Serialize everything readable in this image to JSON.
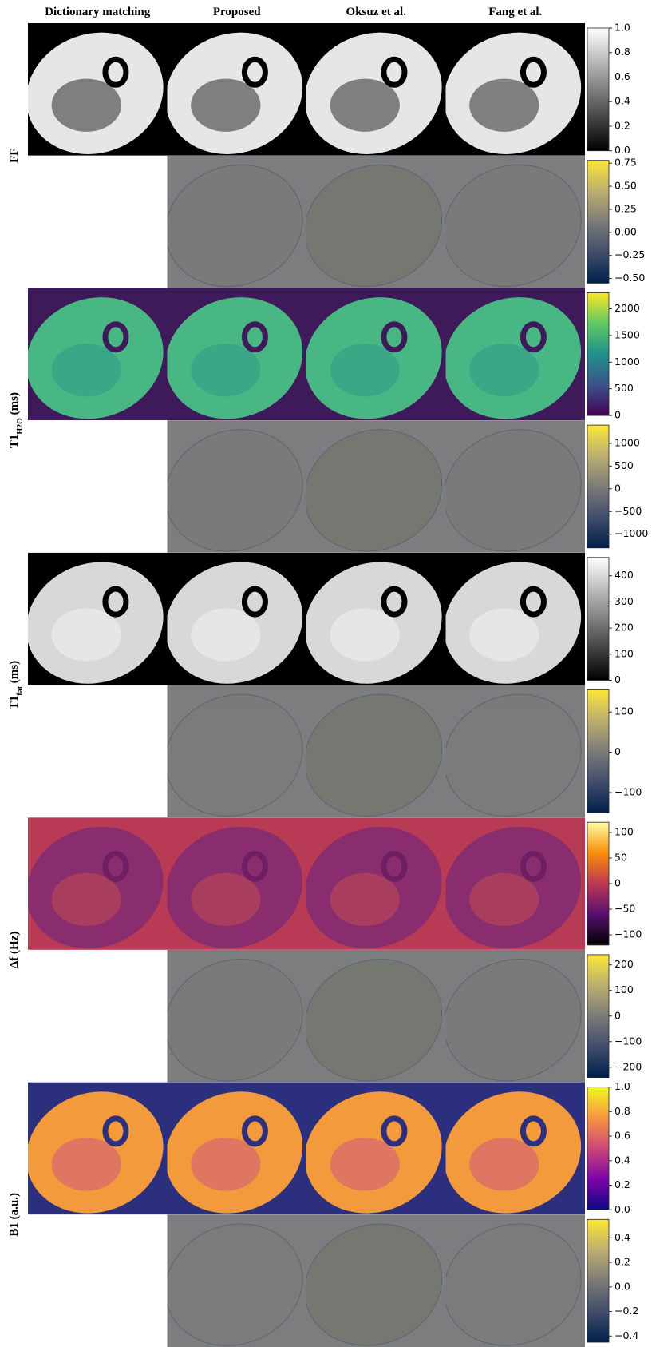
{
  "columns": [
    "Dictionary matching",
    "Proposed",
    "Oksuz et al.",
    "Fang et al."
  ],
  "rows": [
    {
      "label": "FF",
      "map": {
        "colormap": "gray",
        "lim": [
          0,
          1
        ],
        "ticks": [
          {
            "value": 0,
            "label": "0.0"
          },
          {
            "value": 0.2,
            "label": "0.2"
          },
          {
            "value": 0.4,
            "label": "0.4"
          },
          {
            "value": 0.6,
            "label": "0.6"
          },
          {
            "value": 0.8,
            "label": "0.8"
          },
          {
            "value": 1,
            "label": "1.0"
          }
        ]
      },
      "error": {
        "colormap": "cividis",
        "lim": [
          -0.55,
          0.78
        ],
        "ticks": [
          {
            "value": -0.5,
            "label": "−0.50"
          },
          {
            "value": -0.25,
            "label": "−0.25"
          },
          {
            "value": 0,
            "label": "0.00"
          },
          {
            "value": 0.25,
            "label": "0.25"
          },
          {
            "value": 0.5,
            "label": "0.50"
          },
          {
            "value": 0.75,
            "label": "0.75"
          }
        ]
      }
    },
    {
      "label": "T1",
      "subscript": "H2O",
      "unit": "(ms)",
      "map": {
        "colormap": "viridis",
        "lim": [
          0,
          2300
        ],
        "ticks": [
          0,
          500,
          1000,
          1500,
          2000
        ]
      },
      "error": {
        "colormap": "cividis",
        "lim": [
          -1300,
          1400
        ],
        "ticks": [
          {
            "value": -1000,
            "label": "−1000"
          },
          {
            "value": -500,
            "label": "−500"
          },
          0,
          500,
          1000
        ]
      }
    },
    {
      "label": "T1",
      "subscript": "fat",
      "unit": "(ms)",
      "map": {
        "colormap": "gray",
        "lim": [
          0,
          470
        ],
        "ticks": [
          0,
          100,
          200,
          300,
          400
        ]
      },
      "error": {
        "colormap": "cividis",
        "lim": [
          -150,
          155
        ],
        "ticks": [
          {
            "value": -100,
            "label": "−100"
          },
          0,
          100
        ]
      }
    },
    {
      "label": "Δf (Hz)",
      "map": {
        "colormap": "inferno",
        "lim": [
          -120,
          120
        ],
        "ticks": [
          {
            "value": -100,
            "label": "−100"
          },
          {
            "value": -50,
            "label": "−50"
          },
          0,
          50,
          100
        ]
      },
      "error": {
        "colormap": "cividis",
        "lim": [
          -240,
          240
        ],
        "ticks": [
          {
            "value": -200,
            "label": "−200"
          },
          {
            "value": -100,
            "label": "−100"
          },
          0,
          100,
          200
        ]
      }
    },
    {
      "label": "B1 (a.u.)",
      "map": {
        "colormap": "plasma",
        "lim": [
          0,
          1
        ],
        "ticks": [
          {
            "value": 0,
            "label": "0.0"
          },
          {
            "value": 0.2,
            "label": "0.2"
          },
          {
            "value": 0.4,
            "label": "0.4"
          },
          {
            "value": 0.6,
            "label": "0.6"
          },
          {
            "value": 0.8,
            "label": "0.8"
          },
          {
            "value": 1,
            "label": "1.0"
          }
        ]
      },
      "error": {
        "colormap": "cividis",
        "lim": [
          -0.45,
          0.55
        ],
        "ticks": [
          {
            "value": -0.4,
            "label": "−0.4"
          },
          {
            "value": -0.2,
            "label": "−0.2"
          },
          {
            "value": 0,
            "label": "0.0"
          },
          {
            "value": 0.2,
            "label": "0.2"
          },
          {
            "value": 0.4,
            "label": "0.4"
          }
        ]
      }
    }
  ]
}
